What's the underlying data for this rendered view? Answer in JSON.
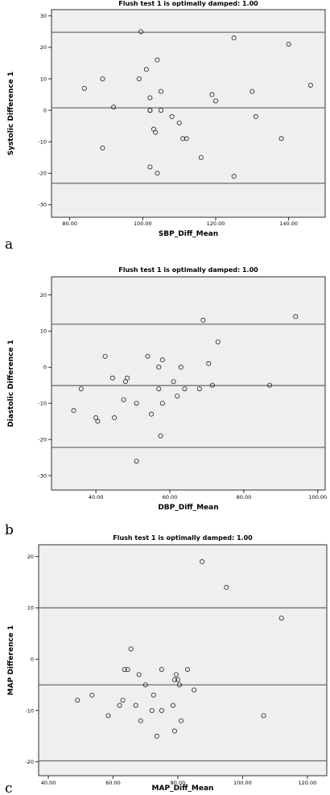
{
  "chart_data": [
    {
      "type": "scatter",
      "panel_label": "a",
      "title": "Flush test 1 is optimally damped: 1.00",
      "xlabel": "SBP_Diff_Mean",
      "ylabel": "Systolic Difference 1",
      "xlim": [
        75,
        150
      ],
      "ylim": [
        -34,
        32
      ],
      "xticks": [
        80,
        100,
        120,
        140
      ],
      "xtick_labels": [
        "80.00",
        "100.00",
        "120.00",
        "140.00"
      ],
      "yticks": [
        -30,
        -20,
        -10,
        0,
        10,
        20,
        30
      ],
      "ytick_labels": [
        "-30",
        "-20",
        "-10",
        "0",
        "10",
        "20",
        "30"
      ],
      "hlines": [
        24.8,
        0.8,
        -23.2
      ],
      "background": "#efefef",
      "points": [
        [
          84,
          7
        ],
        [
          89,
          10
        ],
        [
          89,
          -12
        ],
        [
          92,
          1
        ],
        [
          99,
          10
        ],
        [
          99.5,
          25
        ],
        [
          101,
          13
        ],
        [
          102,
          4
        ],
        [
          102,
          -18
        ],
        [
          102,
          0
        ],
        [
          102,
          0
        ],
        [
          103,
          -6
        ],
        [
          103.5,
          -7
        ],
        [
          104,
          16
        ],
        [
          104,
          -20
        ],
        [
          105,
          6
        ],
        [
          105,
          0
        ],
        [
          108,
          -2
        ],
        [
          110,
          -4
        ],
        [
          111,
          -9
        ],
        [
          112,
          -9
        ],
        [
          116,
          -15
        ],
        [
          119,
          5
        ],
        [
          120,
          3
        ],
        [
          125,
          23
        ],
        [
          125,
          -21
        ],
        [
          130,
          6
        ],
        [
          131,
          -2
        ],
        [
          138,
          -9
        ],
        [
          140,
          21
        ],
        [
          146,
          8
        ]
      ]
    },
    {
      "type": "scatter",
      "panel_label": "b",
      "title": "Flush test 1 is optimally damped: 1.00",
      "xlabel": "DBP_Diff_Mean",
      "ylabel": "Diastolic Difference 1",
      "xlim": [
        28,
        102
      ],
      "ylim": [
        -34,
        25
      ],
      "xticks": [
        40,
        60,
        80,
        100
      ],
      "xtick_labels": [
        "40.00",
        "60.00",
        "80.00",
        "100.00"
      ],
      "yticks": [
        -30,
        -20,
        -10,
        0,
        10,
        20
      ],
      "ytick_labels": [
        "-30",
        "-20",
        "-10",
        "0",
        "10",
        "20"
      ],
      "hlines": [
        11.9,
        -5.1,
        -22.2
      ],
      "background": "#efefef",
      "points": [
        [
          34,
          -12
        ],
        [
          36,
          -6
        ],
        [
          40,
          -14
        ],
        [
          40.5,
          -15
        ],
        [
          42.5,
          3
        ],
        [
          44.5,
          -3
        ],
        [
          45,
          -14
        ],
        [
          47.5,
          -9
        ],
        [
          48,
          -4
        ],
        [
          48.5,
          -3
        ],
        [
          51,
          -10
        ],
        [
          51,
          -26
        ],
        [
          54,
          3
        ],
        [
          55,
          -13
        ],
        [
          57,
          -6
        ],
        [
          57,
          0
        ],
        [
          57.5,
          -19
        ],
        [
          58,
          2
        ],
        [
          58,
          -10
        ],
        [
          61,
          -4
        ],
        [
          62,
          -8
        ],
        [
          63,
          0
        ],
        [
          64,
          -6
        ],
        [
          68,
          -6
        ],
        [
          69,
          13
        ],
        [
          70.5,
          1
        ],
        [
          71.5,
          -5
        ],
        [
          73,
          7
        ],
        [
          87,
          -5
        ],
        [
          94,
          14
        ]
      ]
    },
    {
      "type": "scatter",
      "panel_label": "c",
      "title": "Flush test 1 is optimally damped: 1.00",
      "xlabel": "MAP_Diff_Mean",
      "ylabel": "MAP Difference 1",
      "xlim": [
        37,
        126
      ],
      "ylim": [
        -22.7,
        22.3
      ],
      "xticks": [
        40,
        60,
        80,
        100,
        120
      ],
      "xtick_labels": [
        "40.00",
        "60.00",
        "80.00",
        "100.00",
        "120.00"
      ],
      "yticks": [
        -20,
        -10,
        0,
        10,
        20
      ],
      "ytick_labels": [
        "-20",
        "-10",
        "0",
        "10",
        "20"
      ],
      "hlines": [
        10,
        -5,
        -19.8
      ],
      "background": "#efefef",
      "points": [
        [
          49,
          -8
        ],
        [
          53.5,
          -7
        ],
        [
          58.5,
          -11
        ],
        [
          62,
          -9
        ],
        [
          63,
          -8
        ],
        [
          63.5,
          -2
        ],
        [
          64.5,
          -2
        ],
        [
          65.5,
          2
        ],
        [
          67,
          -9
        ],
        [
          68,
          -3
        ],
        [
          68.5,
          -12
        ],
        [
          70,
          -5
        ],
        [
          72,
          -10
        ],
        [
          72.5,
          -7
        ],
        [
          73.5,
          -15
        ],
        [
          75,
          -2
        ],
        [
          75,
          -10
        ],
        [
          78.5,
          -9
        ],
        [
          79,
          -4
        ],
        [
          79,
          -14
        ],
        [
          79.5,
          -3
        ],
        [
          80,
          -4
        ],
        [
          80.5,
          -5
        ],
        [
          81,
          -12
        ],
        [
          83,
          -2
        ],
        [
          85,
          -6
        ],
        [
          87.5,
          19
        ],
        [
          95,
          14
        ],
        [
          106.5,
          -11
        ],
        [
          112,
          8
        ]
      ]
    }
  ]
}
